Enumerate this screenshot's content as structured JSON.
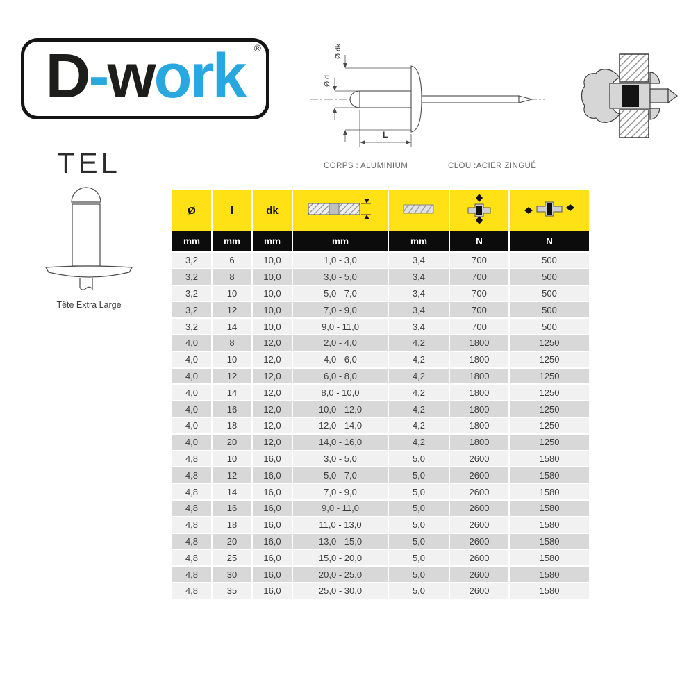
{
  "logo": {
    "part1": "D",
    "part2": "-",
    "part3": "w",
    "part4": "ork",
    "registered": "®",
    "color_dark": "#1d1d1b",
    "color_blue": "#29a8e0"
  },
  "product": {
    "code": "TEL",
    "caption": "Tête Extra Large"
  },
  "diagram": {
    "label_dk": "Ø dk",
    "label_d": "Ø d",
    "label_l": "L"
  },
  "materials": {
    "body": "CORPS : ALUMINIUM",
    "nail": "CLOU :ACIER ZINGUÉ"
  },
  "table": {
    "columns": [
      {
        "label": "Ø",
        "unit": "mm",
        "icon": null
      },
      {
        "label": "l",
        "unit": "mm",
        "icon": null
      },
      {
        "label": "dk",
        "unit": "mm",
        "icon": null
      },
      {
        "label": "",
        "unit": "mm",
        "icon": "clamping-range-icon"
      },
      {
        "label": "",
        "unit": "mm",
        "icon": "drill-hole-icon"
      },
      {
        "label": "",
        "unit": "N",
        "icon": "tensile-strength-icon"
      },
      {
        "label": "",
        "unit": "N",
        "icon": "shear-strength-icon"
      }
    ],
    "rows": [
      [
        "3,2",
        "6",
        "10,0",
        "1,0 - 3,0",
        "3,4",
        "700",
        "500"
      ],
      [
        "3,2",
        "8",
        "10,0",
        "3,0 - 5,0",
        "3,4",
        "700",
        "500"
      ],
      [
        "3,2",
        "10",
        "10,0",
        "5,0 - 7,0",
        "3,4",
        "700",
        "500"
      ],
      [
        "3,2",
        "12",
        "10,0",
        "7,0 - 9,0",
        "3,4",
        "700",
        "500"
      ],
      [
        "3,2",
        "14",
        "10,0",
        "9,0 - 11,0",
        "3,4",
        "700",
        "500"
      ],
      [
        "4,0",
        "8",
        "12,0",
        "2,0 - 4,0",
        "4,2",
        "1800",
        "1250"
      ],
      [
        "4,0",
        "10",
        "12,0",
        "4,0 - 6,0",
        "4,2",
        "1800",
        "1250"
      ],
      [
        "4,0",
        "12",
        "12,0",
        "6,0 - 8,0",
        "4,2",
        "1800",
        "1250"
      ],
      [
        "4,0",
        "14",
        "12,0",
        "8,0 - 10,0",
        "4,2",
        "1800",
        "1250"
      ],
      [
        "4,0",
        "16",
        "12,0",
        "10,0 - 12,0",
        "4,2",
        "1800",
        "1250"
      ],
      [
        "4,0",
        "18",
        "12,0",
        "12,0 - 14,0",
        "4,2",
        "1800",
        "1250"
      ],
      [
        "4,0",
        "20",
        "12,0",
        "14,0 - 16,0",
        "4,2",
        "1800",
        "1250"
      ],
      [
        "4,8",
        "10",
        "16,0",
        "3,0 - 5,0",
        "5,0",
        "2600",
        "1580"
      ],
      [
        "4,8",
        "12",
        "16,0",
        "5,0 - 7,0",
        "5,0",
        "2600",
        "1580"
      ],
      [
        "4,8",
        "14",
        "16,0",
        "7,0 - 9,0",
        "5,0",
        "2600",
        "1580"
      ],
      [
        "4,8",
        "16",
        "16,0",
        "9,0 - 11,0",
        "5,0",
        "2600",
        "1580"
      ],
      [
        "4,8",
        "18",
        "16,0",
        "11,0 - 13,0",
        "5,0",
        "2600",
        "1580"
      ],
      [
        "4,8",
        "20",
        "16,0",
        "13,0 - 15,0",
        "5,0",
        "2600",
        "1580"
      ],
      [
        "4,8",
        "25",
        "16,0",
        "15,0 - 20,0",
        "5,0",
        "2600",
        "1580"
      ],
      [
        "4,8",
        "30",
        "16,0",
        "20,0 - 25,0",
        "5,0",
        "2600",
        "1580"
      ],
      [
        "4,8",
        "35",
        "16,0",
        "25,0 - 30,0",
        "5,0",
        "2600",
        "1580"
      ]
    ],
    "colors": {
      "header_bg": "#ffe116",
      "unit_row_bg": "#0c0c0c",
      "row_light": "#f1f1f1",
      "row_dark": "#d8d8d8"
    }
  }
}
